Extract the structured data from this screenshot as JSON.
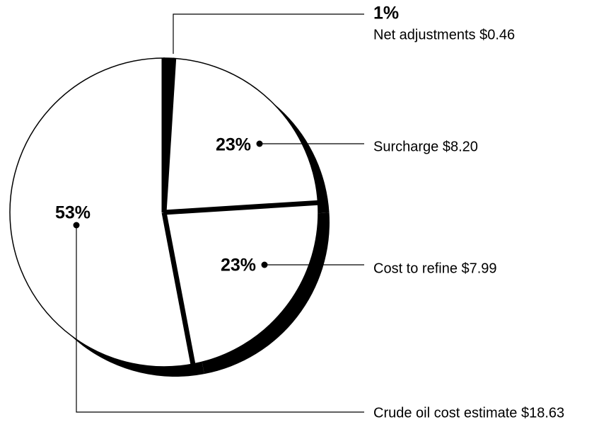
{
  "chart_data": {
    "type": "pie",
    "categories": [
      "Net adjustments $0.46",
      "Surcharge $8.20",
      "Cost to refine $7.99",
      "Crude oil cost estimate $18.63"
    ],
    "values": [
      1,
      23,
      23,
      53
    ],
    "value_labels": [
      "1%",
      "23%",
      "23%",
      "53%"
    ],
    "colors": [
      "#000000",
      "#ffffff",
      "#ffffff",
      "#ffffff"
    ]
  }
}
